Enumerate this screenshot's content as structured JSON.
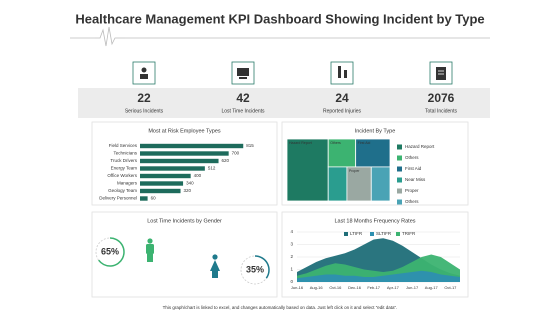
{
  "title": "Healthcare Management KPI Dashboard Showing Incident by Type",
  "kpis": [
    {
      "value": "22",
      "label": "Serious Incidents"
    },
    {
      "value": "42",
      "label": "Lost Time Incidents"
    },
    {
      "value": "24",
      "label": "Reported Injuries"
    },
    {
      "value": "2076",
      "label": "Total Incidents"
    }
  ],
  "chart_data": [
    {
      "type": "bar",
      "orientation": "horizontal",
      "title": "Most at Risk Employee Types",
      "categories": [
        "Field Services",
        "Technicians",
        "Truck Drivers",
        "Energy Team",
        "Office Workers",
        "Managers",
        "Geology Team",
        "Delivery Personnel"
      ],
      "values": [
        815,
        700,
        620,
        512,
        400,
        340,
        320,
        60
      ],
      "color": "#1e6b5c",
      "xlim": [
        0,
        900
      ]
    },
    {
      "type": "treemap",
      "title": "Incident By Type",
      "categories": [
        "Hazard Report",
        "Others",
        "First Aid",
        "Near Miss",
        "Proper",
        "Others"
      ],
      "values": [
        40,
        12,
        15,
        10,
        13,
        10
      ],
      "colors": [
        "#1e7a62",
        "#3cb371",
        "#1f6f8b",
        "#2a9d8f",
        "#9aa8a2",
        "#4aa3b5"
      ]
    },
    {
      "type": "gender-ratio",
      "title": "Lost Time Incidents by Gender",
      "values": [
        65,
        35
      ],
      "value_labels": [
        "65%",
        "35%"
      ],
      "colors": [
        "#3cb371",
        "#1f7a8c"
      ]
    },
    {
      "type": "area",
      "title": "Last 18 Months Frequency Rates",
      "categories": [
        "Jun-16",
        null,
        "Aug-16",
        null,
        "Oct-16",
        null,
        "Dec-16",
        null,
        "Feb-17",
        null,
        "Apr-17",
        null,
        "Jun-17",
        null,
        "Aug-17",
        null,
        "Oct-17",
        null
      ],
      "series": [
        {
          "name": "LTIFR",
          "color": "#1f6e78",
          "values": [
            0.8,
            1.2,
            1.6,
            1.9,
            2.1,
            2.3,
            2.6,
            3.0,
            3.4,
            3.5,
            3.3,
            2.9,
            2.4,
            1.9,
            1.4,
            1.0,
            0.7,
            0.5
          ]
        },
        {
          "name": "SLTIFR",
          "color": "#2d8fb0",
          "values": [
            0.3,
            0.4,
            0.5,
            0.6,
            0.6,
            0.5,
            0.5,
            0.4,
            0.4,
            0.5,
            0.6,
            0.7,
            0.8,
            0.9,
            0.8,
            0.6,
            0.5,
            0.4
          ]
        },
        {
          "name": "TRIFR",
          "color": "#3cb371",
          "values": [
            0.5,
            0.7,
            1.0,
            1.3,
            1.5,
            1.4,
            1.2,
            1.0,
            0.9,
            0.8,
            0.9,
            1.2,
            1.6,
            2.0,
            2.2,
            2.0,
            1.5,
            1.0
          ]
        }
      ],
      "ylim": [
        0,
        4
      ],
      "yticks": [
        0,
        1,
        2,
        3,
        4
      ],
      "legend": "top"
    }
  ],
  "footer": "This graph/chart is linked to excel, and changes automatically based on data. Just left click on it and select \"edit data\"."
}
